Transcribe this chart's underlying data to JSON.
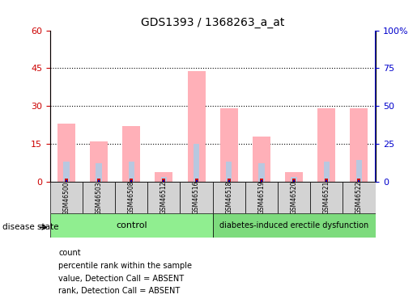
{
  "title": "GDS1393 / 1368263_a_at",
  "samples": [
    "GSM46500",
    "GSM46503",
    "GSM46508",
    "GSM46512",
    "GSM46516",
    "GSM46518",
    "GSM46519",
    "GSM46520",
    "GSM46521",
    "GSM46522"
  ],
  "pink_values": [
    23,
    16,
    22,
    4,
    44,
    29,
    18,
    4,
    29,
    29
  ],
  "blue_values": [
    8,
    7.5,
    8,
    2,
    15,
    8,
    7.5,
    2,
    8,
    8.5
  ],
  "ylim_left": [
    0,
    60
  ],
  "ylim_right": [
    0,
    100
  ],
  "yticks_left": [
    0,
    15,
    30,
    45,
    60
  ],
  "yticks_right": [
    0,
    25,
    50,
    75,
    100
  ],
  "ytick_labels_right": [
    "0",
    "25",
    "50",
    "75",
    "100%"
  ],
  "grid_values": [
    15,
    30,
    45
  ],
  "control_samples": 5,
  "disease_samples": 5,
  "control_label": "control",
  "disease_label": "diabetes-induced erectile dysfunction",
  "disease_state_label": "disease state",
  "pink_color": "#ffb0b8",
  "blue_bar_color": "#b8c8e0",
  "control_bg": "#90ee90",
  "disease_bg": "#7ddb7d",
  "sample_bg": "#d3d3d3",
  "left_axis_color": "#cc0000",
  "right_axis_color": "#0000cc",
  "legend_labels": [
    "count",
    "percentile rank within the sample",
    "value, Detection Call = ABSENT",
    "rank, Detection Call = ABSENT"
  ],
  "legend_colors": [
    "#cc0000",
    "#0000cc",
    "#ffb0b8",
    "#b8c8e0"
  ]
}
